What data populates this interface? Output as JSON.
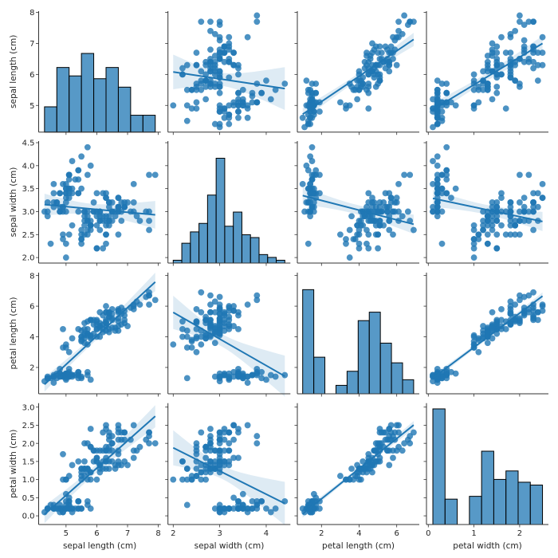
{
  "chart_data": {
    "type": "scatter",
    "layout": "pairplot",
    "diagonal": "histogram",
    "off_diagonal": "scatter with linear regression and 95% confidence band",
    "diag_sharey": true,
    "color": "#1f77b4",
    "hist_edge_color": "#000000",
    "grid": false,
    "variables": [
      {
        "name": "sepal length (cm)",
        "xlim": [
          4.11,
          8.08
        ],
        "ylim": [
          4.14,
          8.04
        ],
        "xticks": [
          "5",
          "6",
          "7",
          "8"
        ],
        "yticks": [
          "5",
          "6",
          "7",
          "8"
        ],
        "hist_range": [
          4.3,
          7.9
        ],
        "hist_bins": 9
      },
      {
        "name": "sepal width (cm)",
        "xlim": [
          1.887,
          4.52
        ],
        "ylim": [
          1.88,
          4.535
        ],
        "xticks": [
          "2",
          "3",
          "4"
        ],
        "yticks": [
          "2.0",
          "2.5",
          "3.0",
          "3.5",
          "4.0",
          "4.5"
        ],
        "hist_range": [
          2.0,
          4.4
        ],
        "hist_bins": 13
      },
      {
        "name": "petal length (cm)",
        "xlim": [
          0.716,
          7.2
        ],
        "ylim": [
          0.28,
          8.19
        ],
        "xticks": [
          "2",
          "4",
          "6"
        ],
        "yticks": [
          "2",
          "4",
          "6",
          "8"
        ],
        "hist_range": [
          1.0,
          6.9
        ],
        "hist_bins": 10
      },
      {
        "name": "petal width (cm)",
        "xlim": [
          -0.04,
          2.63
        ],
        "ylim": [
          -0.24,
          3.11
        ],
        "xticks": [
          "0",
          "1",
          "2"
        ],
        "yticks": [
          "0.0",
          "0.5",
          "1.0",
          "1.5",
          "2.0",
          "2.5",
          "3.0"
        ],
        "hist_range": [
          0.1,
          2.5
        ],
        "hist_bins": 9
      }
    ],
    "rows": [
      [
        5.1,
        3.5,
        1.4,
        0.2
      ],
      [
        4.9,
        3.0,
        1.4,
        0.2
      ],
      [
        4.7,
        3.2,
        1.3,
        0.2
      ],
      [
        4.6,
        3.1,
        1.5,
        0.2
      ],
      [
        5.0,
        3.6,
        1.4,
        0.2
      ],
      [
        5.4,
        3.9,
        1.7,
        0.4
      ],
      [
        4.6,
        3.4,
        1.4,
        0.3
      ],
      [
        5.0,
        3.4,
        1.5,
        0.2
      ],
      [
        4.4,
        2.9,
        1.4,
        0.2
      ],
      [
        4.9,
        3.1,
        1.5,
        0.1
      ],
      [
        5.4,
        3.7,
        1.5,
        0.2
      ],
      [
        4.8,
        3.4,
        1.6,
        0.2
      ],
      [
        4.8,
        3.0,
        1.4,
        0.1
      ],
      [
        4.3,
        3.0,
        1.1,
        0.1
      ],
      [
        5.8,
        4.0,
        1.2,
        0.2
      ],
      [
        5.7,
        4.4,
        1.5,
        0.4
      ],
      [
        5.4,
        3.9,
        1.3,
        0.4
      ],
      [
        5.1,
        3.5,
        1.4,
        0.3
      ],
      [
        5.7,
        3.8,
        1.7,
        0.3
      ],
      [
        5.1,
        3.8,
        1.5,
        0.3
      ],
      [
        5.4,
        3.4,
        1.7,
        0.2
      ],
      [
        5.1,
        3.7,
        1.5,
        0.4
      ],
      [
        4.6,
        3.6,
        1.0,
        0.2
      ],
      [
        5.1,
        3.3,
        1.7,
        0.5
      ],
      [
        4.8,
        3.4,
        1.9,
        0.2
      ],
      [
        5.0,
        3.0,
        1.6,
        0.2
      ],
      [
        5.0,
        3.4,
        1.6,
        0.4
      ],
      [
        5.2,
        3.5,
        1.5,
        0.2
      ],
      [
        5.2,
        3.4,
        1.4,
        0.2
      ],
      [
        4.7,
        3.2,
        1.6,
        0.2
      ],
      [
        4.8,
        3.1,
        1.6,
        0.2
      ],
      [
        5.4,
        3.4,
        1.5,
        0.4
      ],
      [
        5.2,
        4.1,
        1.5,
        0.1
      ],
      [
        5.5,
        4.2,
        1.4,
        0.2
      ],
      [
        4.9,
        3.1,
        1.5,
        0.2
      ],
      [
        5.0,
        3.2,
        1.2,
        0.2
      ],
      [
        5.5,
        3.5,
        1.3,
        0.2
      ],
      [
        4.9,
        3.6,
        1.4,
        0.1
      ],
      [
        4.4,
        3.0,
        1.3,
        0.2
      ],
      [
        5.1,
        3.4,
        1.5,
        0.2
      ],
      [
        5.0,
        3.5,
        1.3,
        0.3
      ],
      [
        4.5,
        2.3,
        1.3,
        0.3
      ],
      [
        4.4,
        3.2,
        1.3,
        0.2
      ],
      [
        5.0,
        3.5,
        1.6,
        0.6
      ],
      [
        5.1,
        3.8,
        1.9,
        0.4
      ],
      [
        4.8,
        3.0,
        1.4,
        0.3
      ],
      [
        5.1,
        3.8,
        1.6,
        0.2
      ],
      [
        4.6,
        3.2,
        1.4,
        0.2
      ],
      [
        5.3,
        3.7,
        1.5,
        0.2
      ],
      [
        5.0,
        3.3,
        1.4,
        0.2
      ],
      [
        7.0,
        3.2,
        4.7,
        1.4
      ],
      [
        6.4,
        3.2,
        4.5,
        1.5
      ],
      [
        6.9,
        3.1,
        4.9,
        1.5
      ],
      [
        5.5,
        2.3,
        4.0,
        1.3
      ],
      [
        6.5,
        2.8,
        4.6,
        1.5
      ],
      [
        5.7,
        2.8,
        4.5,
        1.3
      ],
      [
        6.3,
        3.3,
        4.7,
        1.6
      ],
      [
        4.9,
        2.4,
        3.3,
        1.0
      ],
      [
        6.6,
        2.9,
        4.6,
        1.3
      ],
      [
        5.2,
        2.7,
        3.9,
        1.4
      ],
      [
        5.0,
        2.0,
        3.5,
        1.0
      ],
      [
        5.9,
        3.0,
        4.2,
        1.5
      ],
      [
        6.0,
        2.2,
        4.0,
        1.0
      ],
      [
        6.1,
        2.9,
        4.7,
        1.4
      ],
      [
        5.6,
        2.9,
        3.6,
        1.3
      ],
      [
        6.7,
        3.1,
        4.4,
        1.4
      ],
      [
        5.6,
        3.0,
        4.5,
        1.5
      ],
      [
        5.8,
        2.7,
        4.1,
        1.0
      ],
      [
        6.2,
        2.2,
        4.5,
        1.5
      ],
      [
        5.6,
        2.5,
        3.9,
        1.1
      ],
      [
        5.9,
        3.2,
        4.8,
        1.8
      ],
      [
        6.1,
        2.8,
        4.0,
        1.3
      ],
      [
        6.3,
        2.5,
        4.9,
        1.5
      ],
      [
        6.1,
        2.8,
        4.7,
        1.2
      ],
      [
        6.4,
        2.9,
        4.3,
        1.3
      ],
      [
        6.6,
        3.0,
        4.4,
        1.4
      ],
      [
        6.8,
        2.8,
        4.8,
        1.4
      ],
      [
        6.7,
        3.0,
        5.0,
        1.7
      ],
      [
        6.0,
        2.9,
        4.5,
        1.5
      ],
      [
        5.7,
        2.6,
        3.5,
        1.0
      ],
      [
        5.5,
        2.4,
        3.8,
        1.1
      ],
      [
        5.5,
        2.4,
        3.7,
        1.0
      ],
      [
        5.8,
        2.7,
        3.9,
        1.2
      ],
      [
        6.0,
        2.7,
        5.1,
        1.6
      ],
      [
        5.4,
        3.0,
        4.5,
        1.5
      ],
      [
        6.0,
        3.4,
        4.5,
        1.6
      ],
      [
        6.7,
        3.1,
        4.7,
        1.5
      ],
      [
        6.3,
        2.3,
        4.4,
        1.3
      ],
      [
        5.6,
        3.0,
        4.1,
        1.3
      ],
      [
        5.5,
        2.5,
        4.0,
        1.3
      ],
      [
        5.5,
        2.6,
        4.4,
        1.2
      ],
      [
        6.1,
        3.0,
        4.6,
        1.4
      ],
      [
        5.8,
        2.6,
        4.0,
        1.2
      ],
      [
        5.0,
        2.3,
        3.3,
        1.0
      ],
      [
        5.6,
        2.7,
        4.2,
        1.3
      ],
      [
        5.7,
        3.0,
        4.2,
        1.2
      ],
      [
        5.7,
        2.9,
        4.2,
        1.3
      ],
      [
        6.2,
        2.9,
        4.3,
        1.3
      ],
      [
        5.1,
        2.5,
        3.0,
        1.1
      ],
      [
        5.7,
        2.8,
        4.1,
        1.3
      ],
      [
        6.3,
        3.3,
        6.0,
        2.5
      ],
      [
        5.8,
        2.7,
        5.1,
        1.9
      ],
      [
        7.1,
        3.0,
        5.9,
        2.1
      ],
      [
        6.3,
        2.9,
        5.6,
        1.8
      ],
      [
        6.5,
        3.0,
        5.8,
        2.2
      ],
      [
        7.6,
        3.0,
        6.6,
        2.1
      ],
      [
        4.9,
        2.5,
        4.5,
        1.7
      ],
      [
        7.3,
        2.9,
        6.3,
        1.8
      ],
      [
        6.7,
        2.5,
        5.8,
        1.8
      ],
      [
        7.2,
        3.6,
        6.1,
        2.5
      ],
      [
        6.5,
        3.2,
        5.1,
        2.0
      ],
      [
        6.4,
        2.7,
        5.3,
        1.9
      ],
      [
        6.8,
        3.0,
        5.5,
        2.1
      ],
      [
        5.7,
        2.5,
        5.0,
        2.0
      ],
      [
        5.8,
        2.8,
        5.1,
        2.4
      ],
      [
        6.4,
        3.2,
        5.3,
        2.3
      ],
      [
        6.5,
        3.0,
        5.5,
        1.8
      ],
      [
        7.7,
        3.8,
        6.7,
        2.2
      ],
      [
        7.7,
        2.6,
        6.9,
        2.3
      ],
      [
        6.0,
        2.2,
        5.0,
        1.5
      ],
      [
        6.9,
        3.2,
        5.7,
        2.3
      ],
      [
        5.6,
        2.8,
        4.9,
        2.0
      ],
      [
        7.7,
        2.8,
        6.7,
        2.0
      ],
      [
        6.3,
        2.7,
        4.9,
        1.8
      ],
      [
        6.7,
        3.3,
        5.7,
        2.1
      ],
      [
        7.2,
        3.2,
        6.0,
        1.8
      ],
      [
        6.2,
        2.8,
        4.8,
        1.8
      ],
      [
        6.1,
        3.0,
        4.9,
        1.8
      ],
      [
        6.4,
        2.8,
        5.6,
        2.1
      ],
      [
        7.2,
        3.0,
        5.8,
        1.6
      ],
      [
        7.4,
        2.8,
        6.1,
        1.9
      ],
      [
        7.9,
        3.8,
        6.4,
        2.0
      ],
      [
        6.4,
        2.8,
        5.6,
        2.2
      ],
      [
        6.3,
        2.8,
        5.1,
        1.5
      ],
      [
        6.1,
        2.6,
        5.6,
        1.4
      ],
      [
        7.7,
        3.0,
        6.1,
        2.3
      ],
      [
        6.3,
        3.4,
        5.6,
        2.4
      ],
      [
        6.4,
        3.1,
        5.5,
        1.8
      ],
      [
        6.0,
        3.0,
        4.8,
        1.8
      ],
      [
        6.9,
        3.1,
        5.4,
        2.1
      ],
      [
        6.7,
        3.1,
        5.6,
        2.4
      ],
      [
        6.9,
        3.1,
        5.1,
        2.3
      ],
      [
        5.8,
        2.7,
        5.1,
        1.9
      ],
      [
        6.8,
        3.2,
        5.9,
        2.3
      ],
      [
        6.7,
        3.3,
        5.7,
        2.5
      ],
      [
        6.7,
        3.0,
        5.2,
        2.3
      ],
      [
        6.3,
        2.5,
        5.0,
        1.9
      ],
      [
        6.5,
        3.0,
        5.2,
        2.0
      ],
      [
        6.2,
        3.4,
        5.4,
        2.3
      ],
      [
        5.9,
        3.0,
        5.1,
        1.8
      ]
    ]
  }
}
